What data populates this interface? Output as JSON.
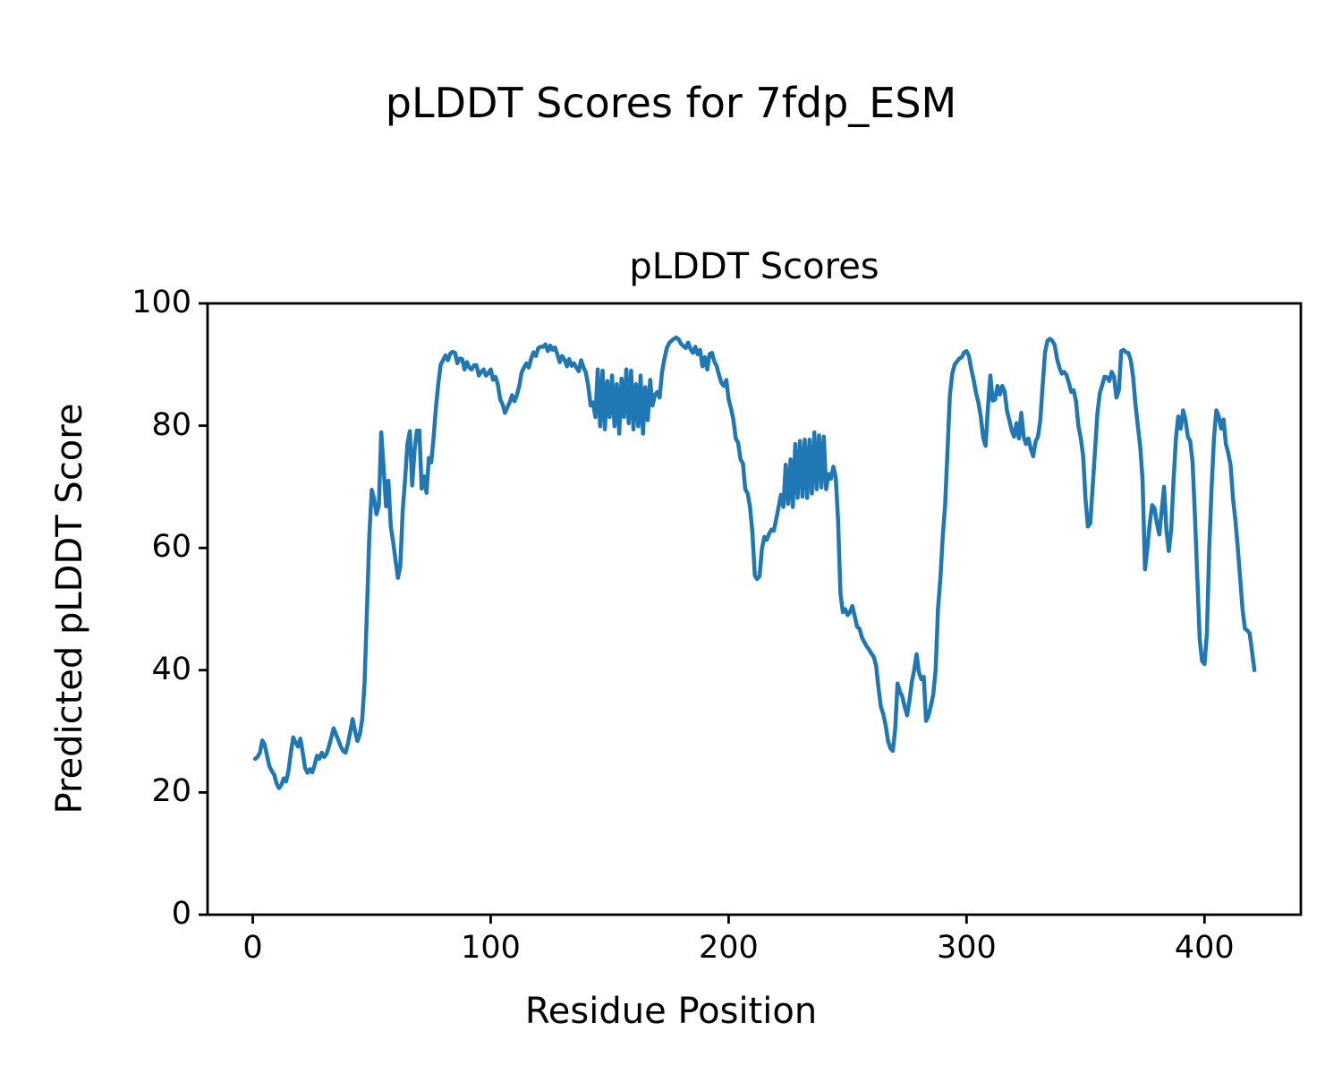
{
  "chart": {
    "suptitle": "pLDDT Scores for 7fdp_ESM"
  },
  "chart_data": {
    "type": "line",
    "title": "pLDDT Scores",
    "xlabel": "Residue Position",
    "ylabel": "Predicted pLDDT Score",
    "x_ticks": [
      0,
      100,
      200,
      300,
      400
    ],
    "y_ticks": [
      0,
      20,
      40,
      60,
      80,
      100
    ],
    "xlim": [
      -19,
      440.5
    ],
    "ylim": [
      0,
      100
    ],
    "grid": false,
    "legend": "none",
    "line_color": "#1f77b4",
    "line_width": 4.5,
    "axes_color": "#000000",
    "series": [
      {
        "name": "pLDDT",
        "x_start": 1,
        "x_step": 1,
        "y": [
          25.5,
          25.8,
          26.5,
          28.5,
          27.8,
          26.0,
          24.3,
          23.5,
          22.9,
          21.5,
          20.7,
          21.2,
          22.3,
          21.8,
          23.5,
          26.5,
          29.0,
          28.2,
          27.5,
          28.8,
          26.5,
          24.0,
          23.2,
          23.8,
          23.3,
          24.5,
          26.0,
          25.5,
          26.5,
          25.8,
          26.3,
          27.5,
          29.0,
          30.5,
          29.5,
          28.5,
          27.5,
          26.8,
          26.5,
          28.0,
          30.0,
          32.0,
          30.0,
          28.4,
          29.5,
          32.0,
          38.0,
          50.0,
          62.0,
          69.5,
          68.0,
          65.5,
          67.0,
          78.9,
          73.0,
          66.8,
          71.0,
          63.5,
          61.0,
          58.0,
          55.1,
          57.0,
          66.0,
          71.0,
          77.0,
          79.1,
          70.2,
          76.0,
          79.2,
          79.2,
          69.7,
          71.7,
          69.0,
          74.7,
          74.0,
          78.0,
          83.0,
          87.0,
          90.0,
          90.7,
          91.5,
          90.7,
          91.8,
          92.1,
          91.9,
          90.2,
          91.0,
          90.9,
          89.2,
          90.4,
          89.5,
          89.2,
          89.9,
          89.9,
          88.2,
          88.8,
          89.2,
          88.2,
          88.6,
          89.2,
          87.5,
          88.0,
          86.8,
          84.3,
          83.5,
          82.1,
          83.0,
          83.8,
          85.0,
          84.0,
          85.0,
          86.5,
          88.7,
          89.5,
          90.2,
          89.5,
          91.0,
          92.0,
          91.4,
          92.7,
          92.9,
          92.9,
          93.3,
          92.2,
          93.1,
          92.4,
          92.8,
          91.7,
          90.4,
          91.4,
          90.8,
          89.7,
          90.9,
          89.8,
          90.2,
          89.5,
          88.9,
          90.7,
          89.5,
          88.7,
          86.5,
          83.3,
          83.8,
          81.4,
          89.2,
          79.9,
          89.0,
          79.4,
          87.3,
          81.4,
          88.2,
          79.9,
          86.8,
          78.7,
          87.7,
          81.4,
          89.2,
          80.4,
          89.0,
          79.4,
          86.8,
          79.9,
          88.2,
          78.7,
          86.3,
          80.9,
          87.5,
          83.3,
          85.0,
          85.5,
          84.6,
          88.7,
          90.9,
          92.7,
          93.5,
          93.9,
          94.2,
          94.4,
          94.1,
          93.4,
          93.0,
          92.7,
          93.6,
          92.5,
          91.9,
          92.9,
          91.7,
          92.4,
          89.7,
          91.2,
          89.2,
          91.7,
          91.9,
          90.5,
          89.7,
          88.2,
          87.0,
          86.5,
          87.5,
          84.3,
          82.8,
          81.0,
          77.9,
          77.2,
          74.5,
          73.8,
          69.6,
          68.9,
          66.7,
          62.5,
          55.5,
          54.9,
          55.4,
          59.8,
          61.8,
          61.3,
          62.3,
          63.0,
          62.8,
          64.7,
          66.7,
          68.7,
          66.7,
          73.6,
          67.2,
          74.5,
          66.7,
          77.0,
          68.2,
          77.5,
          68.4,
          77.7,
          68.2,
          77.7,
          68.9,
          78.9,
          69.6,
          78.4,
          69.9,
          78.2,
          69.6,
          72.1,
          71.3,
          73.3,
          71.6,
          64.7,
          52.5,
          49.5,
          50.0,
          49.0,
          49.5,
          50.5,
          48.8,
          47.1,
          46.8,
          45.4,
          44.6,
          43.9,
          43.4,
          42.7,
          42.2,
          40.7,
          37.0,
          34.0,
          32.8,
          31.0,
          28.4,
          27.2,
          26.8,
          30.4,
          37.8,
          36.5,
          35.7,
          34.0,
          32.6,
          35.0,
          38.1,
          40.0,
          42.6,
          39.6,
          38.5,
          38.9,
          31.7,
          32.5,
          34.2,
          36.0,
          40.0,
          50.0,
          55.0,
          62.0,
          67.0,
          76.0,
          85.0,
          88.5,
          90.0,
          90.5,
          91.0,
          91.2,
          92.0,
          92.2,
          91.4,
          89.2,
          87.5,
          85.3,
          83.8,
          81.4,
          78.0,
          76.7,
          83.1,
          88.2,
          84.1,
          84.3,
          86.5,
          85.1,
          86.5,
          85.6,
          82.4,
          80.9,
          79.2,
          78.2,
          80.4,
          77.9,
          82.1,
          78.2,
          77.0,
          77.9,
          76.2,
          75.0,
          77.4,
          78.2,
          80.9,
          86.8,
          92.0,
          93.9,
          94.2,
          93.9,
          93.2,
          91.0,
          89.5,
          88.5,
          88.8,
          88.3,
          87.0,
          85.5,
          85.8,
          84.0,
          80.0,
          78.0,
          75.0,
          68.0,
          63.5,
          64.0,
          70.0,
          76.0,
          82.0,
          85.3,
          86.6,
          88.0,
          87.9,
          87.3,
          88.8,
          88.0,
          84.6,
          85.8,
          92.2,
          92.4,
          92.0,
          91.9,
          90.7,
          88.0,
          83.4,
          80.0,
          76.5,
          71.1,
          56.5,
          60.0,
          64.0,
          67.0,
          66.5,
          64.0,
          62.2,
          66.0,
          70.0,
          63.0,
          59.5,
          63.0,
          71.0,
          78.0,
          81.5,
          79.5,
          82.5,
          81.0,
          78.2,
          77.5,
          74.0,
          65.0,
          55.0,
          45.0,
          41.5,
          41.0,
          46.0,
          60.0,
          70.0,
          78.0,
          82.5,
          81.5,
          79.5,
          81.0,
          77.0,
          75.5,
          73.5,
          68.0,
          64.5,
          60.0,
          55.0,
          50.0,
          46.8,
          46.5,
          46.0,
          43.0,
          40.0
        ]
      }
    ]
  }
}
